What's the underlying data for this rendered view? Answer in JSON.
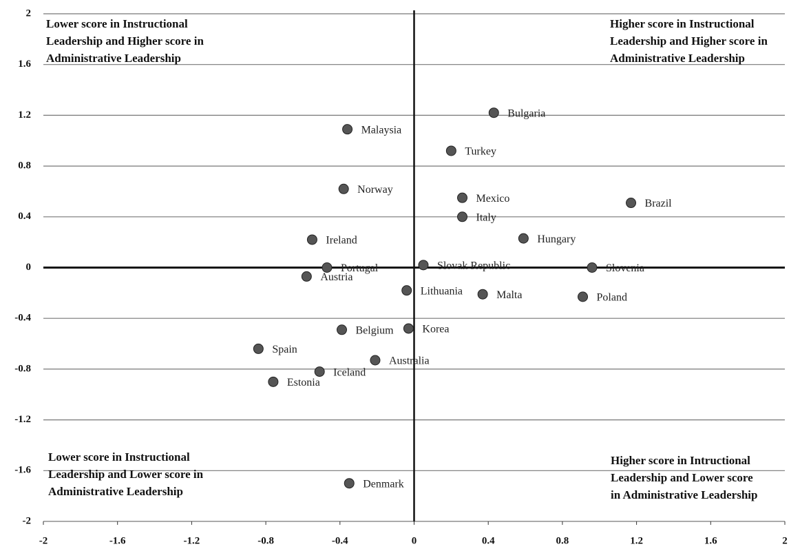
{
  "chart_data": {
    "type": "scatter",
    "annotations": [
      [
        "Lower score in Instructional",
        "Leadership and Higher score in",
        "Administrative Leadership"
      ],
      [
        "Higher score in Instructional",
        "Leadership and Higher score in",
        "Administrative Leadership"
      ],
      [
        "Lower score in Instructional",
        "Leadership and Lower score in",
        "Administrative Leadership"
      ],
      [
        "Higher score in Intructional",
        "Leadership and Lower score",
        "in Administrative Leadership"
      ]
    ],
    "labels": [
      "Bulgaria",
      "Malaysia",
      "Turkey",
      "Norway",
      "Mexico",
      "Brazil",
      "Italy",
      "Ireland",
      "Hungary",
      "Portugal",
      "Slovak Republic",
      "Slovenia",
      "Austria",
      "Lithuania",
      "Malta",
      "Poland",
      "Belgium",
      "Korea",
      "Spain",
      "Australia",
      "Iceland",
      "Estonia",
      "Denmark"
    ],
    "x": [
      0.43,
      -0.36,
      0.2,
      -0.38,
      0.26,
      1.17,
      0.26,
      -0.55,
      0.59,
      -0.47,
      0.05,
      0.96,
      -0.58,
      -0.04,
      0.37,
      0.91,
      -0.39,
      -0.03,
      -0.84,
      -0.21,
      -0.51,
      -0.76,
      -0.35
    ],
    "y": [
      1.22,
      1.09,
      0.92,
      0.62,
      0.55,
      0.51,
      0.4,
      0.22,
      0.23,
      0.0,
      0.02,
      0.0,
      -0.07,
      -0.18,
      -0.21,
      -0.23,
      -0.49,
      -0.48,
      -0.64,
      -0.73,
      -0.82,
      -0.9,
      -1.7
    ],
    "color": "#555555",
    "xlim": [
      -2,
      2
    ],
    "ylim": [
      -2,
      2
    ],
    "xticks": [
      -2,
      -1.6,
      -1.2,
      -0.8,
      -0.4,
      0,
      0.4,
      0.8,
      1.2,
      1.6,
      2
    ],
    "yticks": [
      -2,
      -1.6,
      -1.2,
      -0.8,
      -0.4,
      0,
      0.4,
      0.8,
      1.2,
      1.6,
      2
    ],
    "grid": true
  }
}
